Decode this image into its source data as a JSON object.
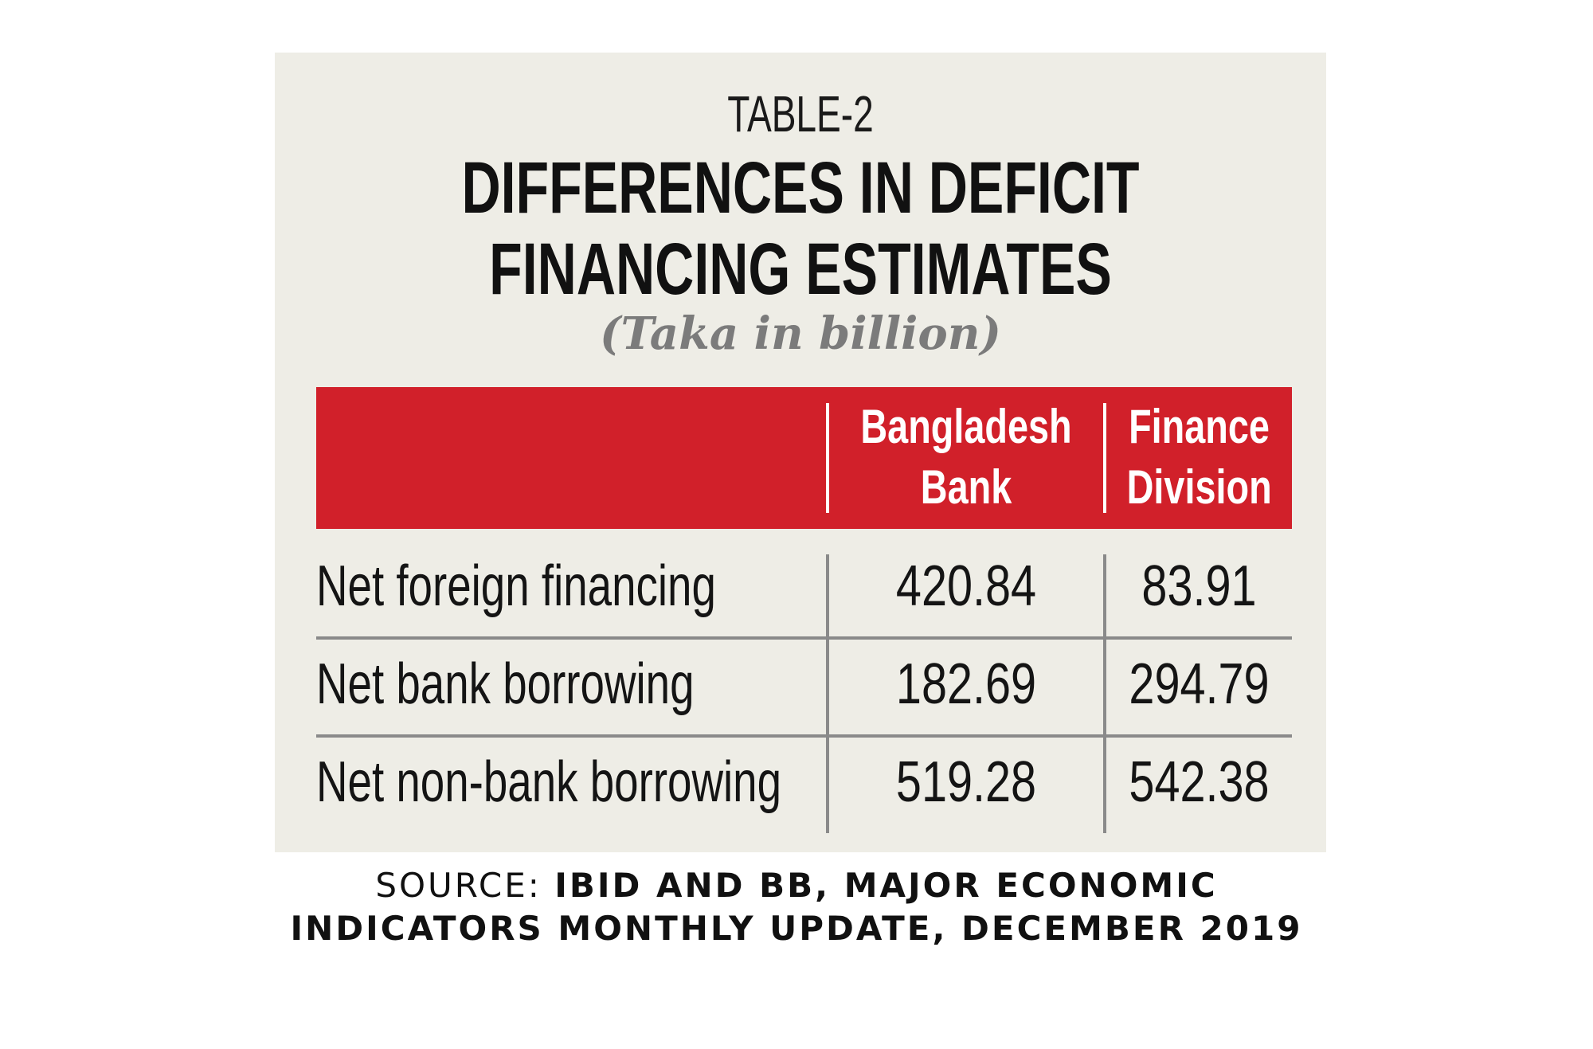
{
  "table": {
    "kicker": "TABLE-2",
    "title_line1": "DIFFERENCES IN DEFICIT",
    "title_line2": "FINANCING ESTIMATES",
    "unit": "(Taka in billion)",
    "columns": [
      "",
      "Bangladesh\nBank",
      "Finance\nDivision"
    ],
    "rows": [
      {
        "label": "Net foreign financing",
        "bangladesh_bank": "420.84",
        "finance_division": "83.91"
      },
      {
        "label": "Net bank borrowing",
        "bangladesh_bank": "182.69",
        "finance_division": "294.79"
      },
      {
        "label": "Net non-bank borrowing",
        "bangladesh_bank": "519.28",
        "finance_division": "542.38"
      }
    ],
    "header_color": "#d1202a",
    "panel_color": "#eeede6"
  },
  "source": {
    "label": "SOURCE: ",
    "text_line1": "IBID AND BB, MAJOR ECONOMIC",
    "text_line2": "INDICATORS MONTHLY UPDATE, DECEMBER 2019"
  }
}
